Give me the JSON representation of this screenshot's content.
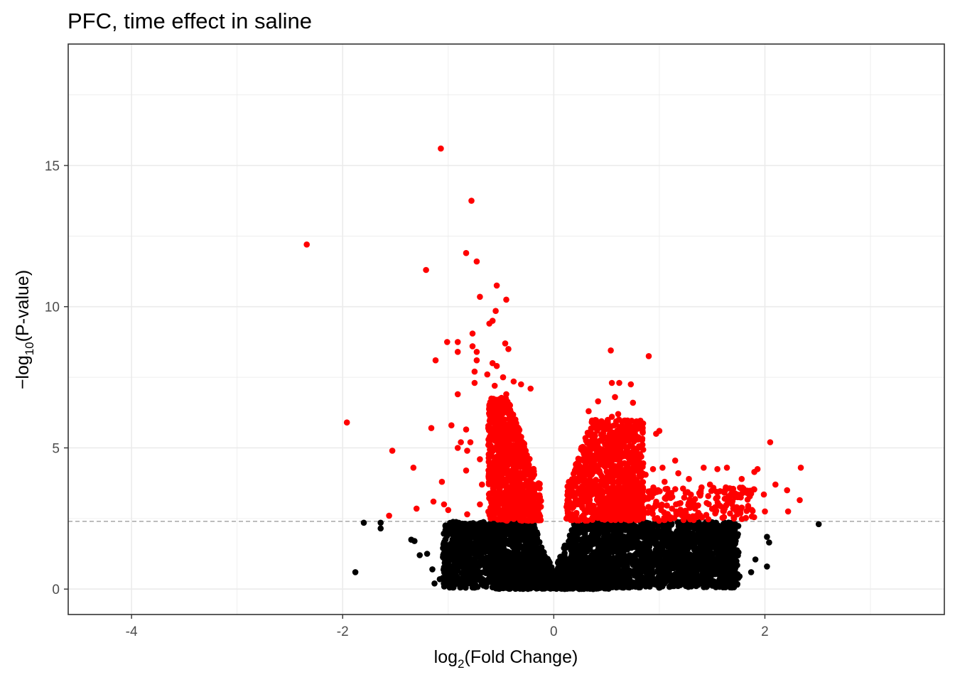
{
  "chart_data": {
    "type": "scatter",
    "title": "PFC, time effect in saline",
    "xlabel": {
      "prefix": "log",
      "sub": "2",
      "suffix": "(Fold Change)"
    },
    "ylabel": {
      "prefix": "−log",
      "sub": "10",
      "suffix": "(P-value)"
    },
    "xlim": [
      -4.6,
      3.7
    ],
    "ylim": [
      -0.9,
      19.3
    ],
    "x_ticks": [
      -4,
      -2,
      0,
      2
    ],
    "x_tick_labels": [
      "-4",
      "-2",
      "0",
      "2"
    ],
    "y_ticks": [
      0,
      5,
      10,
      15
    ],
    "y_tick_labels": [
      "0",
      "5",
      "10",
      "15"
    ],
    "grid": true,
    "threshold_y": 2.4,
    "colors": {
      "significant": "#ff0000",
      "not_significant": "#000000",
      "threshold": "#a6a6a6",
      "grid": "#ebebeb"
    },
    "series": [
      {
        "color": "#ff0000",
        "points": [
          [
            -1.07,
            15.6
          ],
          [
            -0.78,
            13.75
          ],
          [
            -2.34,
            12.2
          ],
          [
            -0.83,
            11.9
          ],
          [
            -0.73,
            11.6
          ],
          [
            -1.21,
            11.3
          ],
          [
            -0.54,
            10.75
          ],
          [
            -0.7,
            10.35
          ],
          [
            -0.45,
            10.25
          ],
          [
            -0.55,
            9.85
          ],
          [
            -0.58,
            9.5
          ],
          [
            -0.61,
            9.4
          ],
          [
            -0.77,
            9.05
          ],
          [
            -1.01,
            8.75
          ],
          [
            -0.91,
            8.75
          ],
          [
            -0.46,
            8.7
          ],
          [
            -0.43,
            8.5
          ],
          [
            -0.77,
            8.6
          ],
          [
            -0.73,
            8.4
          ],
          [
            -0.91,
            8.4
          ],
          [
            -1.12,
            8.1
          ],
          [
            -0.73,
            8.1
          ],
          [
            -0.58,
            8.0
          ],
          [
            -0.54,
            7.9
          ],
          [
            -0.75,
            7.7
          ],
          [
            -0.63,
            7.6
          ],
          [
            -0.48,
            7.5
          ],
          [
            -0.75,
            7.3
          ],
          [
            -0.56,
            7.2
          ],
          [
            -0.38,
            7.35
          ],
          [
            -0.31,
            7.25
          ],
          [
            -0.22,
            7.1
          ],
          [
            -0.91,
            6.9
          ],
          [
            -0.45,
            6.9
          ],
          [
            -0.57,
            6.7
          ],
          [
            -1.96,
            5.9
          ],
          [
            -1.16,
            5.7
          ],
          [
            -0.97,
            5.8
          ],
          [
            -0.83,
            5.65
          ],
          [
            -0.62,
            5.7
          ],
          [
            -0.88,
            5.2
          ],
          [
            -0.79,
            5.2
          ],
          [
            -1.53,
            4.9
          ],
          [
            -0.91,
            5.0
          ],
          [
            -0.82,
            4.9
          ],
          [
            -0.7,
            4.6
          ],
          [
            -0.57,
            4.5
          ],
          [
            -1.33,
            4.3
          ],
          [
            -0.83,
            4.2
          ],
          [
            -1.06,
            3.8
          ],
          [
            -0.68,
            3.7
          ],
          [
            -1.14,
            3.1
          ],
          [
            -1.04,
            3.0
          ],
          [
            -0.7,
            3.0
          ],
          [
            -1.3,
            2.85
          ],
          [
            -1.0,
            2.8
          ],
          [
            -0.82,
            2.65
          ],
          [
            -1.56,
            2.6
          ],
          [
            0.54,
            8.45
          ],
          [
            0.9,
            8.25
          ],
          [
            0.55,
            7.3
          ],
          [
            0.62,
            7.3
          ],
          [
            0.73,
            7.25
          ],
          [
            0.58,
            6.8
          ],
          [
            0.75,
            6.6
          ],
          [
            0.42,
            6.65
          ],
          [
            0.33,
            6.3
          ],
          [
            0.55,
            6.1
          ],
          [
            0.61,
            6.2
          ],
          [
            0.4,
            5.75
          ],
          [
            1.0,
            5.6
          ],
          [
            0.97,
            5.5
          ],
          [
            0.53,
            5.7
          ],
          [
            0.45,
            5.25
          ],
          [
            0.7,
            5.0
          ],
          [
            0.3,
            5.35
          ],
          [
            2.05,
            5.2
          ],
          [
            0.76,
            4.6
          ],
          [
            0.94,
            4.25
          ],
          [
            0.87,
            4.05
          ],
          [
            1.15,
            4.55
          ],
          [
            1.03,
            4.3
          ],
          [
            1.18,
            4.1
          ],
          [
            1.42,
            4.3
          ],
          [
            1.55,
            4.25
          ],
          [
            1.64,
            4.3
          ],
          [
            1.78,
            3.9
          ],
          [
            1.93,
            4.25
          ],
          [
            2.34,
            4.3
          ],
          [
            1.9,
            4.15
          ],
          [
            1.4,
            3.6
          ],
          [
            1.48,
            3.7
          ],
          [
            1.63,
            3.6
          ],
          [
            1.99,
            3.35
          ],
          [
            2.1,
            3.7
          ],
          [
            2.21,
            3.5
          ],
          [
            2.33,
            3.15
          ],
          [
            1.28,
            3.9
          ],
          [
            1.05,
            3.8
          ],
          [
            0.95,
            3.4
          ],
          [
            1.37,
            2.7
          ],
          [
            1.53,
            2.9
          ],
          [
            1.7,
            2.85
          ],
          [
            1.84,
            2.9
          ],
          [
            2.0,
            2.75
          ],
          [
            2.22,
            2.75
          ],
          [
            1.12,
            2.85
          ],
          [
            0.85,
            2.8
          ]
        ],
        "clusters": [
          {
            "x_range": [
              -0.62,
              -0.12
            ],
            "y_range": [
              2.42,
              6.8
            ],
            "count": 900
          },
          {
            "x_range": [
              0.12,
              0.85
            ],
            "y_range": [
              2.42,
              6.0
            ],
            "count": 900
          },
          {
            "x_range": [
              0.5,
              1.9
            ],
            "y_range": [
              2.42,
              3.6
            ],
            "count": 260
          }
        ]
      },
      {
        "color": "#000000",
        "points": [
          [
            -1.88,
            0.6
          ],
          [
            -1.8,
            2.35
          ],
          [
            -1.64,
            2.35
          ],
          [
            -1.64,
            2.15
          ],
          [
            -1.35,
            1.75
          ],
          [
            -1.32,
            1.7
          ],
          [
            -1.27,
            1.2
          ],
          [
            -1.2,
            1.25
          ],
          [
            -1.15,
            0.7
          ],
          [
            -1.13,
            0.2
          ],
          [
            -1.08,
            0.35
          ],
          [
            -1.05,
            0.4
          ],
          [
            2.51,
            2.3
          ],
          [
            2.02,
            1.85
          ],
          [
            2.04,
            1.65
          ],
          [
            2.02,
            0.8
          ],
          [
            1.91,
            1.05
          ],
          [
            1.87,
            0.6
          ],
          [
            1.76,
            0.45
          ],
          [
            1.75,
            1.3
          ],
          [
            1.72,
            0.75
          ],
          [
            1.66,
            0.35
          ],
          [
            1.51,
            0.15
          ],
          [
            1.49,
            1.8
          ],
          [
            1.45,
            0.85
          ],
          [
            1.32,
            0.45
          ]
        ],
        "clusters": [
          {
            "x_range": [
              -1.05,
              1.75
            ],
            "y_range": [
              0.05,
              2.38
            ],
            "count": 3200
          },
          {
            "x_range": [
              -0.55,
              0.55
            ],
            "y_range": [
              0.0,
              1.0
            ],
            "count": 1200
          }
        ]
      }
    ]
  }
}
